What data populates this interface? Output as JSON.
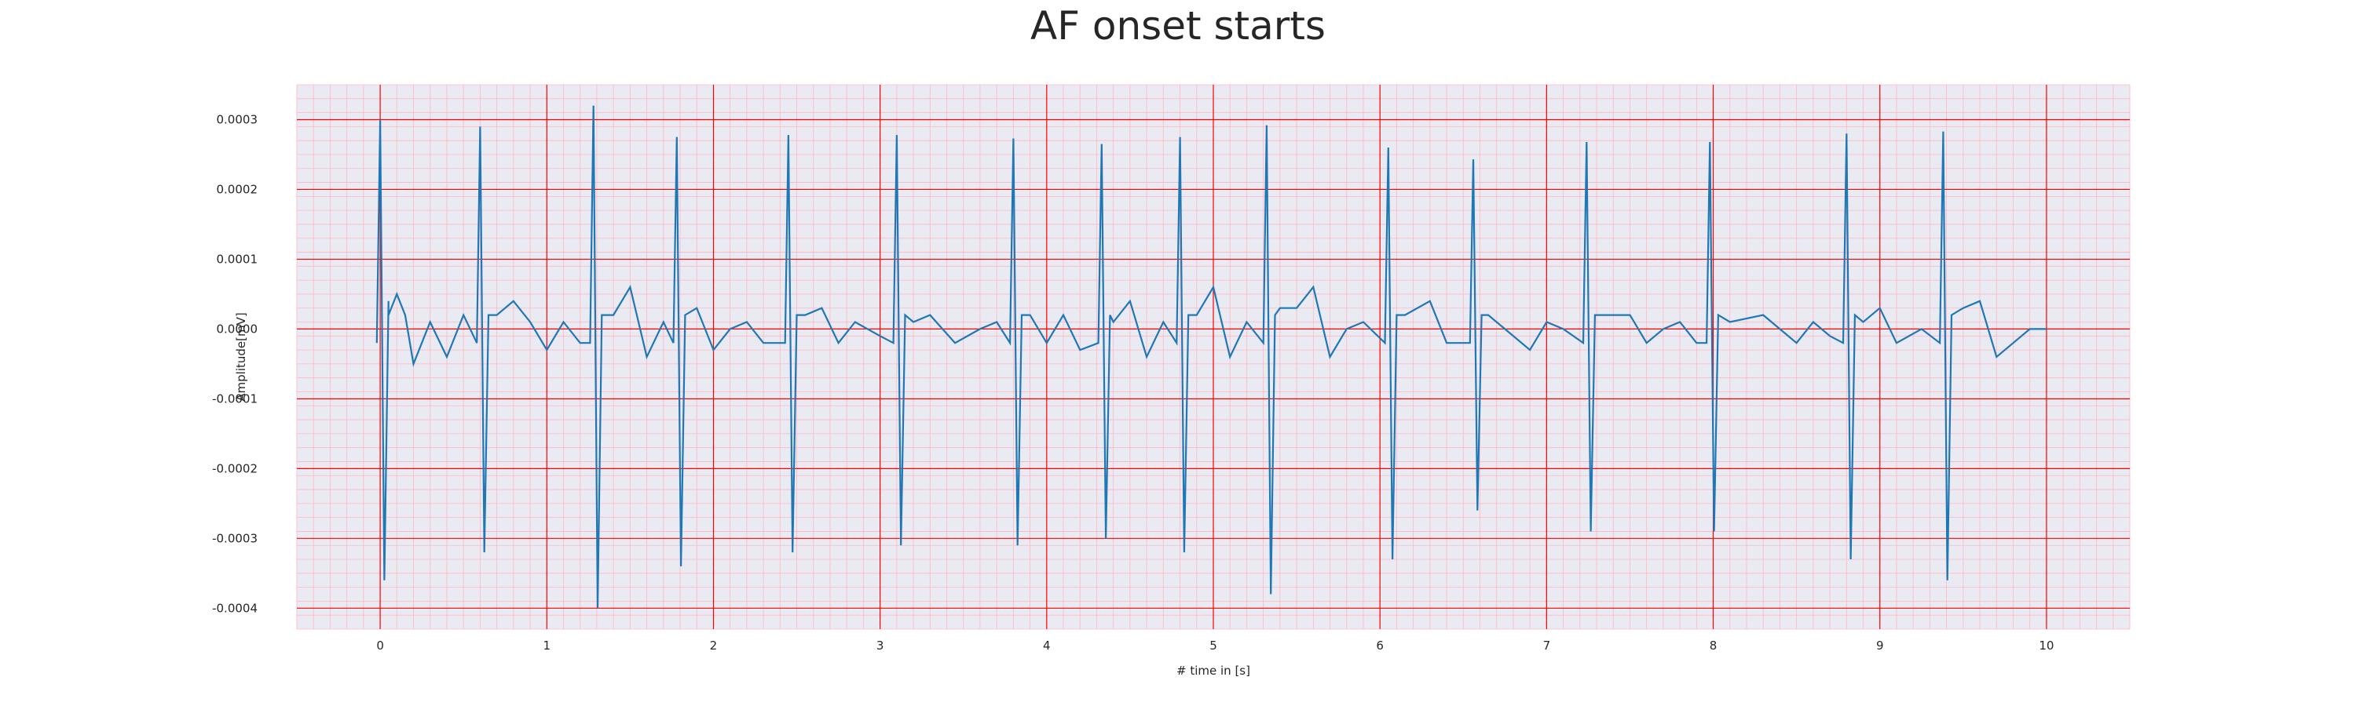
{
  "chart_data": {
    "type": "line",
    "title": "AF onset starts",
    "xlabel": "# time in [s]",
    "ylabel": "Amplitude[mV]",
    "xlim": [
      -0.5,
      10.5
    ],
    "ylim": [
      -0.00043,
      0.00035
    ],
    "xticks": [
      0,
      1,
      2,
      3,
      4,
      5,
      6,
      7,
      8,
      9,
      10
    ],
    "xtick_labels": [
      "0",
      "1",
      "2",
      "3",
      "4",
      "5",
      "6",
      "7",
      "8",
      "9",
      "10"
    ],
    "yticks": [
      -0.0004,
      -0.0003,
      -0.0002,
      -0.0001,
      0.0,
      0.0001,
      0.0002,
      0.0003
    ],
    "ytick_labels": [
      "-0.0004",
      "-0.0003",
      "-0.0002",
      "-0.0001",
      "0.0000",
      "0.0001",
      "0.0002",
      "0.0003"
    ],
    "grid": {
      "major": true,
      "minor": true,
      "major_color": "#ff0000",
      "minor_color": "#ffb6c1"
    },
    "background_color": "#eaeaf2",
    "line_color": "#1f77b4",
    "beats": [
      {
        "t": 0.0,
        "peak": 0.0003,
        "trough": -0.00036
      },
      {
        "t": 0.6,
        "peak": 0.00029,
        "trough": -0.00032
      },
      {
        "t": 1.28,
        "peak": 0.00032,
        "trough": -0.0004
      },
      {
        "t": 1.78,
        "peak": 0.000275,
        "trough": -0.00034
      },
      {
        "t": 2.45,
        "peak": 0.000278,
        "trough": -0.00032
      },
      {
        "t": 3.1,
        "peak": 0.000278,
        "trough": -0.00031
      },
      {
        "t": 3.8,
        "peak": 0.000273,
        "trough": -0.00031
      },
      {
        "t": 4.33,
        "peak": 0.000265,
        "trough": -0.0003
      },
      {
        "t": 4.8,
        "peak": 0.000275,
        "trough": -0.00032
      },
      {
        "t": 5.32,
        "peak": 0.000292,
        "trough": -0.00038
      },
      {
        "t": 6.05,
        "peak": 0.00026,
        "trough": -0.00033
      },
      {
        "t": 6.56,
        "peak": 0.000243,
        "trough": -0.00026
      },
      {
        "t": 7.24,
        "peak": 0.000268,
        "trough": -0.00029
      },
      {
        "t": 7.98,
        "peak": 0.000268,
        "trough": -0.00029
      },
      {
        "t": 8.8,
        "peak": 0.00028,
        "trough": -0.00033
      },
      {
        "t": 9.38,
        "peak": 0.000283,
        "trough": -0.00036
      }
    ],
    "baseline_samples": [
      [
        0.05,
        4e-05
      ],
      [
        0.1,
        5e-05
      ],
      [
        0.15,
        2e-05
      ],
      [
        0.2,
        -5e-05
      ],
      [
        0.3,
        1e-05
      ],
      [
        0.4,
        -4e-05
      ],
      [
        0.5,
        2e-05
      ],
      [
        0.7,
        2e-05
      ],
      [
        0.8,
        4e-05
      ],
      [
        0.9,
        1e-05
      ],
      [
        1.0,
        -3e-05
      ],
      [
        1.1,
        1e-05
      ],
      [
        1.2,
        -2e-05
      ],
      [
        1.4,
        2e-05
      ],
      [
        1.5,
        6e-05
      ],
      [
        1.6,
        -4e-05
      ],
      [
        1.7,
        1e-05
      ],
      [
        1.9,
        3e-05
      ],
      [
        2.0,
        -3e-05
      ],
      [
        2.1,
        0.0
      ],
      [
        2.2,
        1e-05
      ],
      [
        2.3,
        -2e-05
      ],
      [
        2.55,
        2e-05
      ],
      [
        2.65,
        3e-05
      ],
      [
        2.75,
        -2e-05
      ],
      [
        2.85,
        1e-05
      ],
      [
        3.0,
        -1e-05
      ],
      [
        3.2,
        1e-05
      ],
      [
        3.3,
        2e-05
      ],
      [
        3.45,
        -2e-05
      ],
      [
        3.6,
        0.0
      ],
      [
        3.7,
        1e-05
      ],
      [
        3.9,
        2e-05
      ],
      [
        4.0,
        -2e-05
      ],
      [
        4.1,
        2e-05
      ],
      [
        4.2,
        -3e-05
      ],
      [
        4.4,
        1e-05
      ],
      [
        4.5,
        4e-05
      ],
      [
        4.6,
        -4e-05
      ],
      [
        4.7,
        1e-05
      ],
      [
        4.9,
        2e-05
      ],
      [
        5.0,
        6e-05
      ],
      [
        5.1,
        -4e-05
      ],
      [
        5.2,
        1e-05
      ],
      [
        5.4,
        3e-05
      ],
      [
        5.5,
        3e-05
      ],
      [
        5.6,
        6e-05
      ],
      [
        5.7,
        -4e-05
      ],
      [
        5.8,
        0.0
      ],
      [
        5.9,
        1e-05
      ],
      [
        6.0,
        -2e-05
      ],
      [
        6.15,
        2e-05
      ],
      [
        6.3,
        4e-05
      ],
      [
        6.4,
        -2e-05
      ],
      [
        6.5,
        1e-05
      ],
      [
        6.65,
        2e-05
      ],
      [
        6.75,
        0.0
      ],
      [
        6.9,
        -3e-05
      ],
      [
        7.0,
        1e-05
      ],
      [
        7.1,
        0.0
      ],
      [
        7.35,
        2e-05
      ],
      [
        7.5,
        2e-05
      ],
      [
        7.6,
        -2e-05
      ],
      [
        7.7,
        0.0
      ],
      [
        7.8,
        1e-05
      ],
      [
        7.9,
        -2e-05
      ],
      [
        8.1,
        1e-05
      ],
      [
        8.3,
        2e-05
      ],
      [
        8.5,
        -2e-05
      ],
      [
        8.6,
        1e-05
      ],
      [
        8.7,
        -1e-05
      ],
      [
        8.9,
        1e-05
      ],
      [
        9.0,
        3e-05
      ],
      [
        9.1,
        -2e-05
      ],
      [
        9.25,
        0.0
      ],
      [
        9.5,
        3e-05
      ],
      [
        9.6,
        4e-05
      ],
      [
        9.7,
        -4e-05
      ],
      [
        9.8,
        -2e-05
      ],
      [
        9.9,
        0.0
      ],
      [
        10.0,
        0.0
      ]
    ]
  }
}
